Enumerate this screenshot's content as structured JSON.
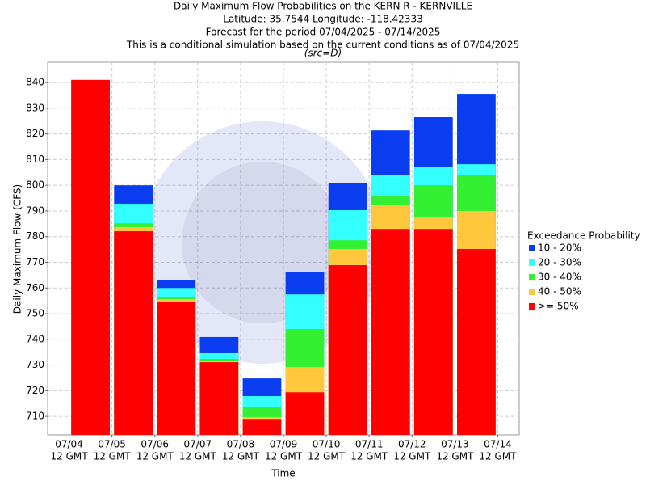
{
  "chart_data": {
    "type": "overlapping-bar",
    "title_lines": [
      "Daily Maximum Flow Probabilities on the KERN R - KERNVILLE",
      "Latitude: 35.7544 Longitude: -118.42333",
      "Forecast for the period 07/04/2025 - 07/14/2025",
      "This is a conditional simulation based on the current conditions as of 07/04/2025"
    ],
    "subtitle": "(src=D)",
    "xlabel": "Time",
    "ylabel": "Daily Maximum Flow (CFS)",
    "legend_title": "Exceedance Probability",
    "x": [
      0.5,
      1.5,
      2.5,
      3.5,
      4.5,
      5.5,
      6.5,
      7.5,
      8.5,
      9.5
    ],
    "xlim": [
      -0.5,
      10.5
    ],
    "xticks": [
      {
        "value": 0,
        "label": "07/04"
      },
      {
        "value": 1,
        "label": "07/05"
      },
      {
        "value": 2,
        "label": "07/06"
      },
      {
        "value": 3,
        "label": "07/07"
      },
      {
        "value": 4,
        "label": "07/08"
      },
      {
        "value": 5,
        "label": "07/09"
      },
      {
        "value": 6,
        "label": "07/10"
      },
      {
        "value": 7,
        "label": "07/11"
      },
      {
        "value": 8,
        "label": "07/12"
      },
      {
        "value": 9,
        "label": "07/13"
      },
      {
        "value": 10,
        "label": "07/14"
      }
    ],
    "xtick_times": [
      "12 GMT",
      "12 GMT",
      "12 GMT",
      "12 GMT",
      "12 GMT",
      "12 GMT",
      "12 GMT",
      "12 GMT",
      "12 GMT",
      "12 GMT",
      "12 GMT"
    ],
    "ylim": [
      702.8,
      847.9
    ],
    "yticks": [
      710,
      720,
      730,
      740,
      750,
      760,
      770,
      780,
      790,
      800,
      810,
      820,
      830,
      840
    ],
    "grid": true,
    "series": [
      {
        "name": "10 - 20%",
        "color": "#0a3cf0",
        "values": [
          841,
          800.0,
          763.2,
          740.9,
          724.8,
          766.3,
          800.7,
          821.4,
          826.5,
          835.6
        ]
      },
      {
        "name": "20 - 30%",
        "color": "#33ffff",
        "values": [
          841,
          792.8,
          760.0,
          734.6,
          717.9,
          757.5,
          790.3,
          804.1,
          807.3,
          808.2
        ]
      },
      {
        "name": "30 - 40%",
        "color": "#33f033",
        "values": [
          841,
          785.2,
          756.6,
          732.4,
          713.8,
          744.0,
          778.6,
          795.9,
          800.0,
          804.1
        ]
      },
      {
        "name": "40 - 50%",
        "color": "#ffc83c",
        "values": [
          841,
          783.7,
          755.6,
          731.7,
          709.7,
          729.2,
          775.2,
          792.5,
          787.7,
          790.0
        ]
      },
      {
        "name": ">= 50%",
        "color": "#ff0000",
        "values": [
          841,
          782.1,
          754.7,
          731.1,
          709.0,
          719.4,
          768.9,
          783.0,
          783.0,
          775.2
        ]
      }
    ]
  }
}
